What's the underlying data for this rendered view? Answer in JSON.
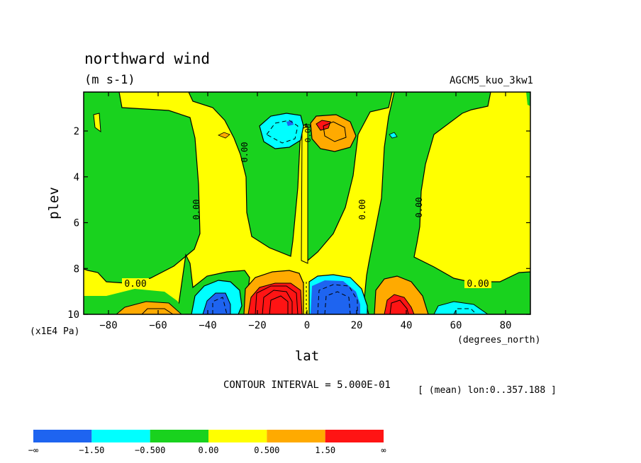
{
  "chart_data": {
    "type": "heatmap",
    "title": "northward wind",
    "units": "(m s-1)",
    "dataset": "AGCM5_kuo_3kw1",
    "xlabel": "lat",
    "x_units": "(degrees_north)",
    "ylabel": "plev",
    "y_units": "(x1E4 Pa)",
    "xlim": [
      -90,
      90
    ],
    "ylim": [
      10,
      0.3
    ],
    "x_ticks": [
      -80,
      -60,
      -40,
      -20,
      0,
      20,
      40,
      60,
      80
    ],
    "y_ticks": [
      2,
      4,
      6,
      8,
      10
    ],
    "x_tick_labels": [
      "−80",
      "−60",
      "−40",
      "−20",
      "0",
      "20",
      "40",
      "60",
      "80"
    ],
    "y_tick_labels": [
      "2",
      "4",
      "6",
      "8",
      "10"
    ],
    "contour_interval_text": "CONTOUR INTERVAL = 5.000E-01",
    "averaging_text": "[ (mean) lon:0..357.188 ]",
    "contour_labels": [
      {
        "text": "0.00",
        "lat": -72,
        "plev": 8.6
      },
      {
        "text": "0.00",
        "lat": 64,
        "plev": 8.6
      },
      {
        "text": "0.00",
        "lat": -49,
        "plev": 5.2,
        "rotated": true
      },
      {
        "text": "0.00",
        "lat": -25,
        "plev": 2.7,
        "rotated": true
      },
      {
        "text": "0.00",
        "lat": 23,
        "plev": 5.3,
        "rotated": true
      },
      {
        "text": "0.00",
        "lat": 45,
        "plev": 5.2,
        "rotated": true
      },
      {
        "text": "0.00",
        "lat": 0,
        "plev": 1.8,
        "rotated": true
      }
    ],
    "colorbar": {
      "levels": [
        "−∞",
        "−1.50",
        "−0.500",
        "0.00",
        "0.500",
        "1.50",
        "∞"
      ],
      "colors": [
        "#1e64f0",
        "#00ffff",
        "#19d21e",
        "#ffff00",
        "#ffaa00",
        "#ff1414"
      ]
    }
  }
}
